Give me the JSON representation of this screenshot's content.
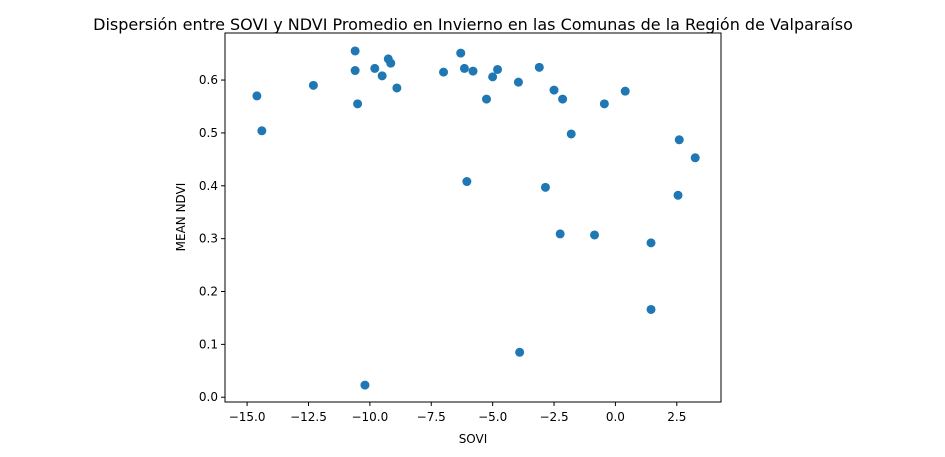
{
  "chart_data": {
    "type": "scatter",
    "title": "Dispersión entre SOVI y NDVI Promedio en Invierno en las Comunas de la Región de Valparaíso",
    "xlabel": "SOVI",
    "ylabel": "MEAN NDVI",
    "xlim": [
      -15.9,
      4.3
    ],
    "ylim": [
      -0.009,
      0.689
    ],
    "x_ticks": [
      -15.0,
      -12.5,
      -10.0,
      -7.5,
      -5.0,
      -2.5,
      0.0,
      2.5
    ],
    "x_tick_labels": [
      "−15.0",
      "−12.5",
      "−10.0",
      "−7.5",
      "−5.0",
      "−2.5",
      "0.0",
      "2.5"
    ],
    "y_ticks": [
      0.0,
      0.1,
      0.2,
      0.3,
      0.4,
      0.5,
      0.6
    ],
    "y_tick_labels": [
      "0.0",
      "0.1",
      "0.2",
      "0.3",
      "0.4",
      "0.5",
      "0.6"
    ],
    "grid": false,
    "color": "#1f77b4",
    "points": [
      {
        "x": -14.6,
        "y": 0.57
      },
      {
        "x": -14.4,
        "y": 0.504
      },
      {
        "x": -12.3,
        "y": 0.59
      },
      {
        "x": -10.6,
        "y": 0.655
      },
      {
        "x": -10.6,
        "y": 0.618
      },
      {
        "x": -10.5,
        "y": 0.555
      },
      {
        "x": -10.2,
        "y": 0.023
      },
      {
        "x": -9.8,
        "y": 0.622
      },
      {
        "x": -9.5,
        "y": 0.608
      },
      {
        "x": -9.25,
        "y": 0.64
      },
      {
        "x": -9.15,
        "y": 0.632
      },
      {
        "x": -8.9,
        "y": 0.585
      },
      {
        "x": -7.0,
        "y": 0.615
      },
      {
        "x": -6.3,
        "y": 0.651
      },
      {
        "x": -6.15,
        "y": 0.622
      },
      {
        "x": -6.05,
        "y": 0.408
      },
      {
        "x": -5.8,
        "y": 0.617
      },
      {
        "x": -5.25,
        "y": 0.564
      },
      {
        "x": -5.0,
        "y": 0.606
      },
      {
        "x": -4.8,
        "y": 0.62
      },
      {
        "x": -3.95,
        "y": 0.596
      },
      {
        "x": -3.9,
        "y": 0.085
      },
      {
        "x": -3.1,
        "y": 0.624
      },
      {
        "x": -2.85,
        "y": 0.397
      },
      {
        "x": -2.5,
        "y": 0.581
      },
      {
        "x": -2.25,
        "y": 0.309
      },
      {
        "x": -2.15,
        "y": 0.564
      },
      {
        "x": -1.8,
        "y": 0.498
      },
      {
        "x": -0.85,
        "y": 0.307
      },
      {
        "x": -0.45,
        "y": 0.555
      },
      {
        "x": 0.4,
        "y": 0.579
      },
      {
        "x": 1.45,
        "y": 0.292
      },
      {
        "x": 1.45,
        "y": 0.166
      },
      {
        "x": 2.55,
        "y": 0.382
      },
      {
        "x": 2.6,
        "y": 0.487
      },
      {
        "x": 3.25,
        "y": 0.453
      }
    ]
  }
}
